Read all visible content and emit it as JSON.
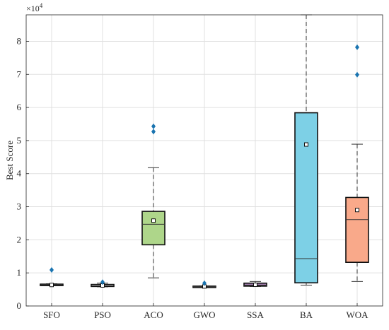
{
  "chart_data": {
    "type": "boxplot",
    "ylabel": "Best Score",
    "y_multiplier_label": "×10",
    "y_multiplier_exponent": "4",
    "ylim": [
      0,
      88000
    ],
    "yticks": [
      0,
      10000,
      20000,
      30000,
      40000,
      50000,
      60000,
      70000,
      80000
    ],
    "ytick_labels": [
      "0",
      "1",
      "2",
      "3",
      "4",
      "5",
      "6",
      "7",
      "8"
    ],
    "grid": true,
    "categories": [
      "SFO",
      "PSO",
      "ACO",
      "GWO",
      "SSA",
      "BA",
      "WOA"
    ],
    "boxes": [
      {
        "category": "SFO",
        "whisker_low": 6100,
        "q1": 6150,
        "median": 6300,
        "q3": 6600,
        "whisker_high": 6700,
        "mean": 6350,
        "outliers": [
          10900
        ],
        "color": "#f2f2f2"
      },
      {
        "category": "PSO",
        "whisker_low": 5800,
        "q1": 5900,
        "median": 6100,
        "q3": 6500,
        "whisker_high": 6900,
        "mean": 6200,
        "outliers": [
          7200
        ],
        "color": "#f2f2f2"
      },
      {
        "category": "ACO",
        "whisker_low": 8500,
        "q1": 18500,
        "median": 24700,
        "q3": 28600,
        "whisker_high": 41800,
        "mean": 25800,
        "outliers": [
          52700,
          54300
        ],
        "color": "#aed68a"
      },
      {
        "category": "GWO",
        "whisker_low": 5700,
        "q1": 5800,
        "median": 5850,
        "q3": 6000,
        "whisker_high": 6050,
        "mean": 5900,
        "outliers": [
          6900
        ],
        "color": "#f2f2f2"
      },
      {
        "category": "SSA",
        "whisker_low": 5900,
        "q1": 6000,
        "median": 6300,
        "q3": 6900,
        "whisker_high": 7400,
        "mean": 6400,
        "outliers": [],
        "color": "#a57fb0"
      },
      {
        "category": "BA",
        "whisker_low": 6300,
        "q1": 7000,
        "median": 14300,
        "q3": 58400,
        "whisker_high": 88000,
        "mean": 48800,
        "outliers": [],
        "color": "#7dd0e6"
      },
      {
        "category": "WOA",
        "whisker_low": 7400,
        "q1": 13200,
        "median": 26100,
        "q3": 32800,
        "whisker_high": 48900,
        "mean": 29000,
        "outliers": [
          69900,
          78200
        ],
        "color": "#f9a98a"
      }
    ],
    "outlier_color": "#1a74b0"
  }
}
